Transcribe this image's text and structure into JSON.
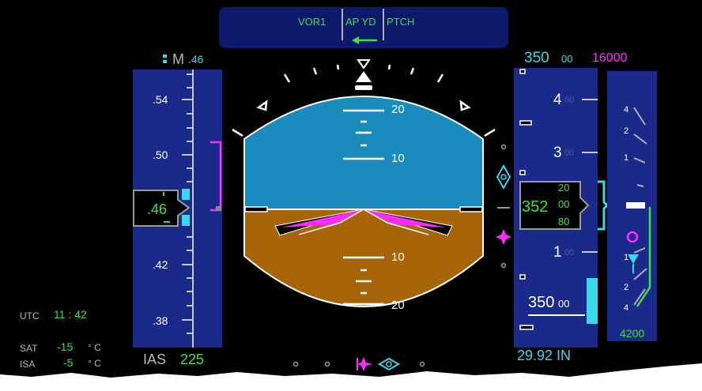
{
  "fma": {
    "mode_left": "VOR1",
    "mode_mid": "AP YD",
    "mode_right": "PTCH"
  },
  "mach_header": {
    "label": "M",
    "value": ".46"
  },
  "speed_tape": {
    "ticks": [
      ".54",
      ".50",
      ".42",
      ".38"
    ],
    "current": ".46",
    "label": "IAS",
    "ias": "225"
  },
  "attitude": {
    "pitch_up_labels": [
      "20",
      "10"
    ],
    "pitch_down_labels": [
      "10",
      "20"
    ],
    "sky_color": "#1a8bbd",
    "ground_color": "#a86408"
  },
  "altitude_header": {
    "selected": "350",
    "selected_suffix": "00",
    "target": "16000"
  },
  "altitude_tape": {
    "ticks_major": [
      "4",
      "3",
      "1"
    ],
    "ticks_suffix": "00",
    "readout_main": "352",
    "readout_up": "20",
    "readout_mid": "00",
    "readout_down": "80",
    "bug": "350",
    "bug_suffix": "00",
    "baro": "29.92 IN"
  },
  "vsi": {
    "scale": [
      "4",
      "2",
      "1",
      "1",
      "2",
      "4"
    ],
    "value": "4200"
  },
  "info": {
    "utc_label": "UTC",
    "utc_value": "11 : 42",
    "sat_label": "SAT",
    "sat_value": "-15",
    "sat_unit": "° C",
    "isa_label": "ISA",
    "isa_value": "-5",
    "isa_unit": "° C"
  },
  "colors": {
    "green": "#3ee03e",
    "cyan": "#3bd8e8",
    "magenta": "#ff2bff",
    "tape": "#1b2a8a"
  }
}
